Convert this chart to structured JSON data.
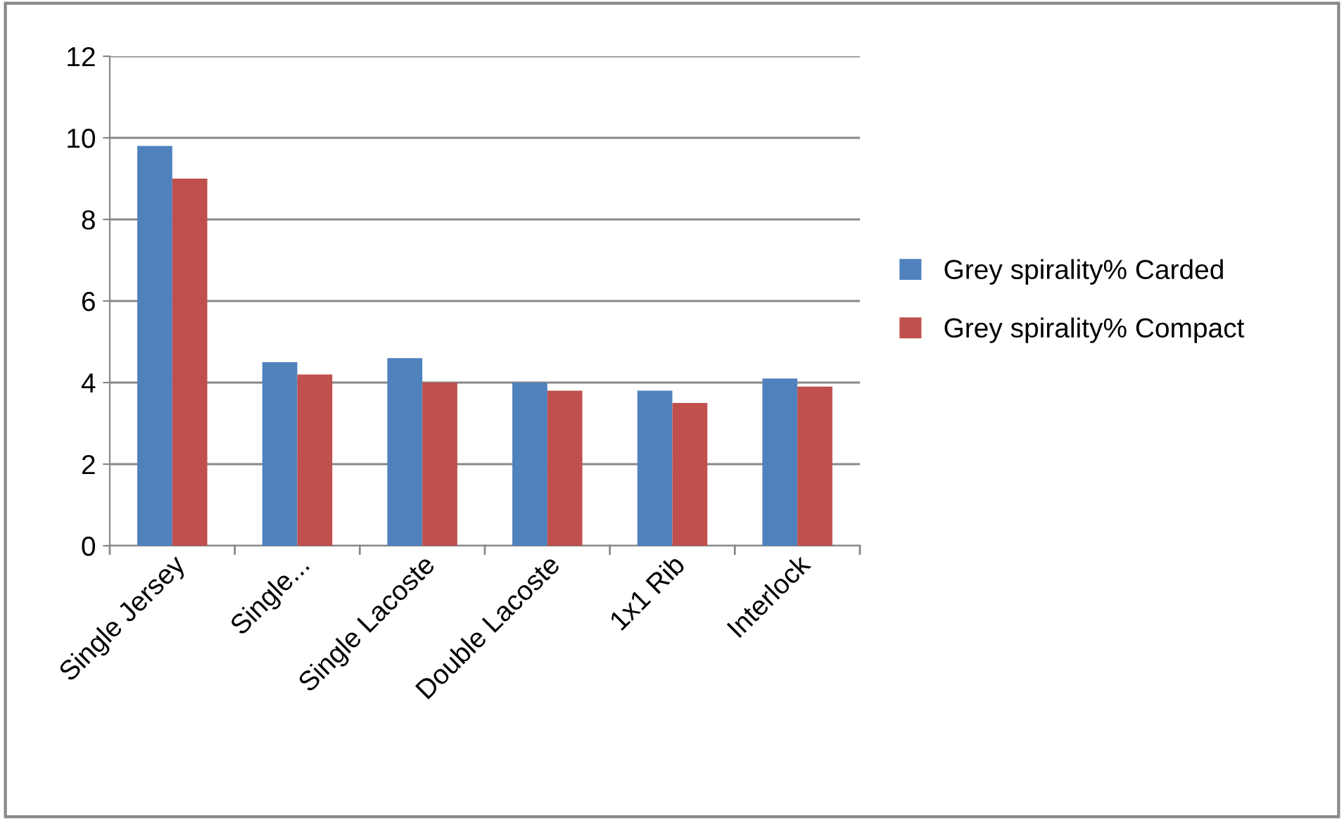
{
  "chart_data": {
    "type": "bar",
    "categories": [
      "Single Jersey",
      "Single...",
      "Single Lacoste",
      "Double Lacoste",
      "1x1 Rib",
      "Interlock"
    ],
    "series": [
      {
        "name": "Grey spirality% Carded",
        "color": "#4f81bd",
        "values": [
          9.8,
          4.5,
          4.6,
          4.0,
          3.8,
          4.1
        ]
      },
      {
        "name": "Grey spirality% Compact",
        "color": "#c0504d",
        "values": [
          9.0,
          4.2,
          4.0,
          3.8,
          3.5,
          3.9
        ]
      }
    ],
    "ylim": [
      0,
      12
    ],
    "yticks": [
      0,
      2,
      4,
      6,
      8,
      10,
      12
    ],
    "grid": "y",
    "legend": "right"
  }
}
